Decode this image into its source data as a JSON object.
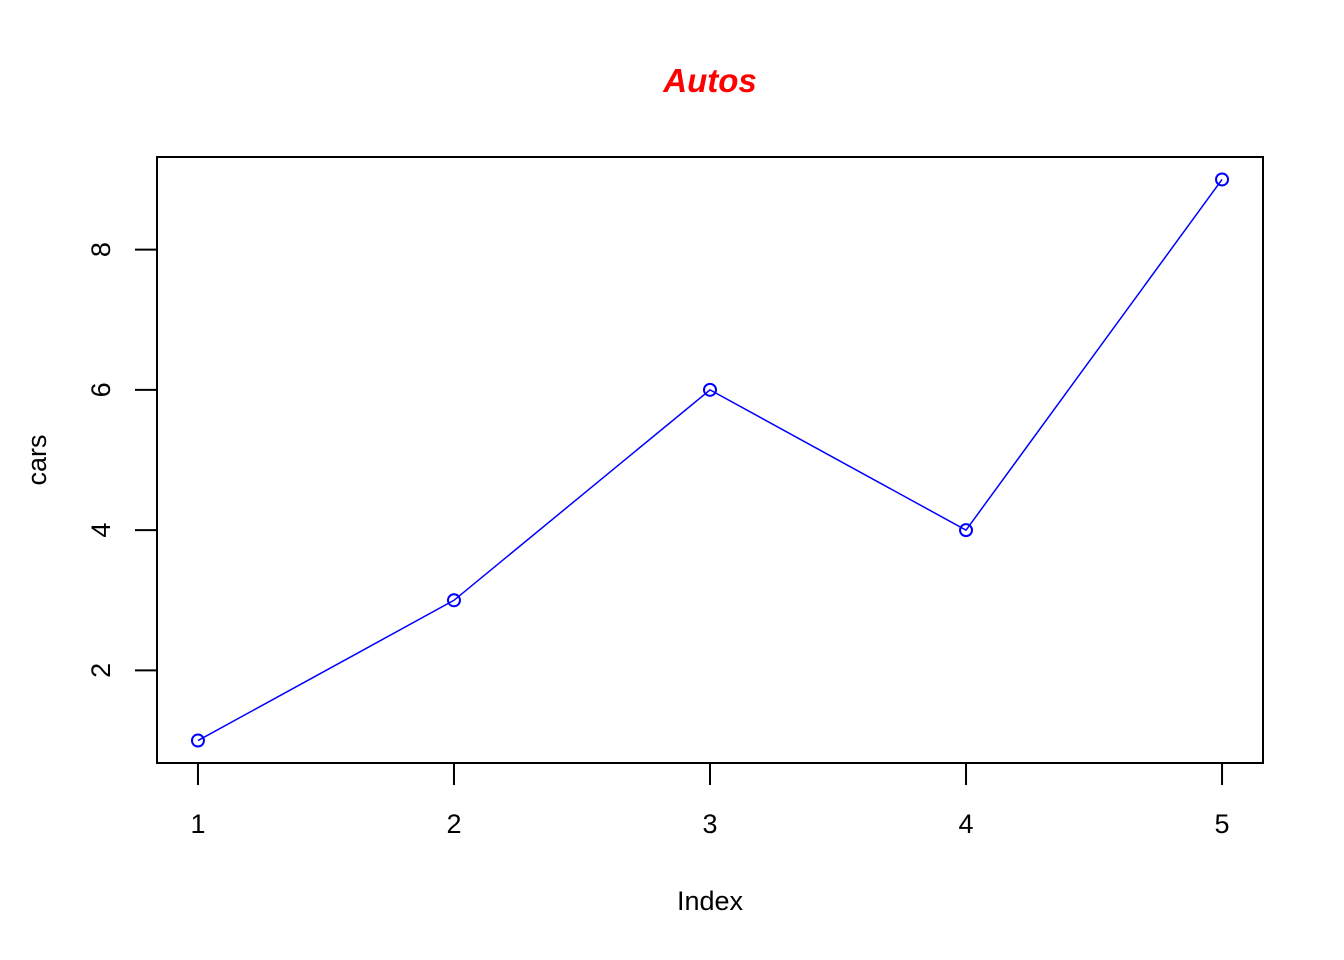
{
  "chart_data": {
    "type": "line",
    "title": "Autos",
    "title_color": "#FF0000",
    "xlabel": "Index",
    "ylabel": "cars",
    "x": [
      1,
      2,
      3,
      4,
      5
    ],
    "y": [
      1,
      3,
      6,
      4,
      9
    ],
    "series_color": "#0000FF",
    "marker": "open-circle",
    "xlim": [
      0.84,
      5.16
    ],
    "ylim": [
      0.68,
      9.32
    ],
    "x_ticks": [
      1,
      2,
      3,
      4,
      5
    ],
    "y_ticks": [
      2,
      4,
      6,
      8
    ],
    "grid": false,
    "legend": "none"
  }
}
